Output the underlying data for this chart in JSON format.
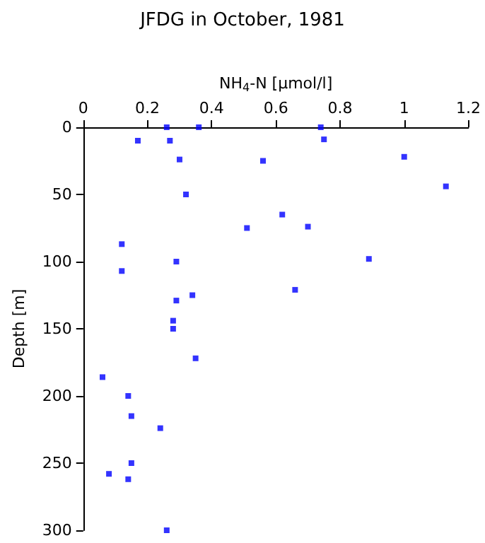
{
  "chart_data": {
    "type": "scatter",
    "title": "JFDG in October, 1981",
    "xlabel": "NH$_{4}$-N [µmol/l]",
    "ylabel": "Depth [m]",
    "x": [
      0.26,
      0.36,
      0.74,
      0.17,
      0.27,
      0.75,
      0.3,
      0.56,
      1.0,
      0.32,
      1.13,
      0.62,
      0.51,
      0.7,
      0.12,
      0.29,
      0.89,
      0.12,
      0.66,
      0.29,
      0.34,
      0.28,
      0.28,
      0.35,
      0.06,
      0.14,
      0.15,
      0.24,
      0.15,
      0.08,
      0.14,
      0.26
    ],
    "series": [
      {
        "color": "#0000ff",
        "values": [
          0,
          0,
          0,
          10,
          10,
          9,
          24,
          25,
          22,
          50,
          44,
          65,
          75,
          74,
          87,
          100,
          98,
          107,
          121,
          129,
          125,
          144,
          150,
          172,
          186,
          200,
          215,
          224,
          250,
          258,
          262,
          300
        ]
      }
    ],
    "xlim": [
      0,
      1.2
    ],
    "xticks": [
      0,
      0.2,
      0.4,
      0.6,
      0.8,
      1,
      1.2
    ],
    "ylim": [
      300,
      0
    ],
    "yticks": [
      0,
      50,
      100,
      150,
      200,
      250,
      300
    ],
    "grid": false,
    "marker": "square"
  }
}
